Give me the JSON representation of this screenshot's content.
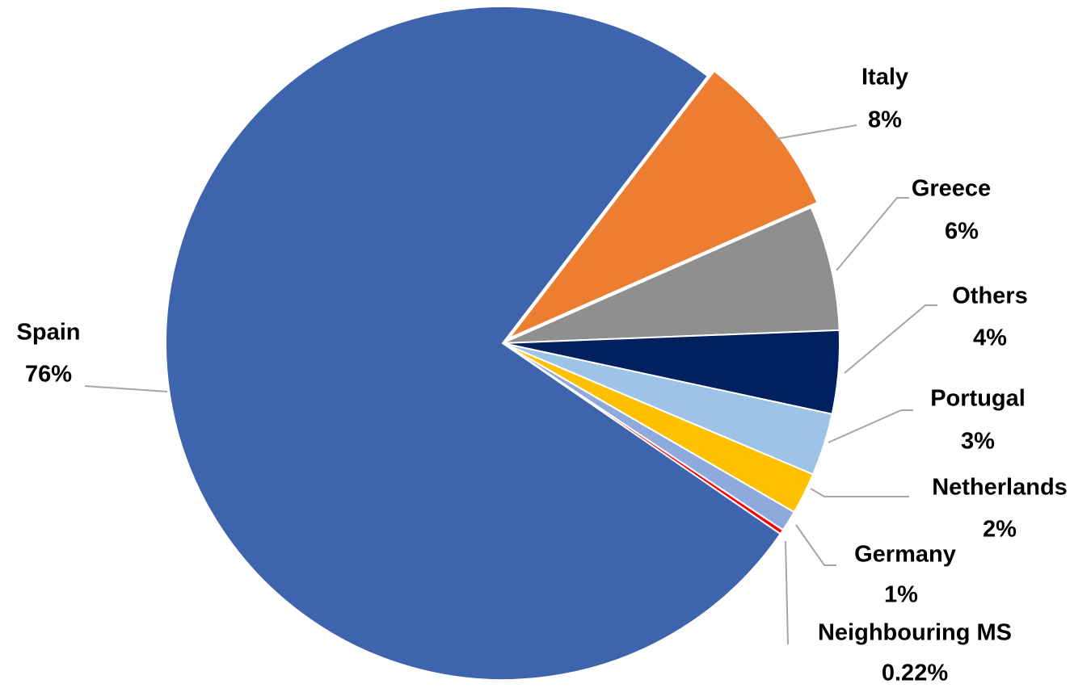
{
  "chart_data": {
    "type": "pie",
    "categories": [
      "Italy",
      "Greece",
      "Others",
      "Portugal",
      "Netherlands",
      "Germany",
      "Neighbouring MS",
      "Spain"
    ],
    "values": [
      8,
      6,
      4,
      3,
      2,
      1,
      0.22,
      76
    ],
    "value_labels": [
      "8%",
      "6%",
      "4%",
      "3%",
      "2%",
      "1%",
      "0.22%",
      "76%"
    ],
    "colors": [
      "#ed7d31",
      "#8f8f8f",
      "#002060",
      "#9dc3e6",
      "#ffc000",
      "#8ea9db",
      "#ff0000",
      "#3e64ad"
    ]
  }
}
